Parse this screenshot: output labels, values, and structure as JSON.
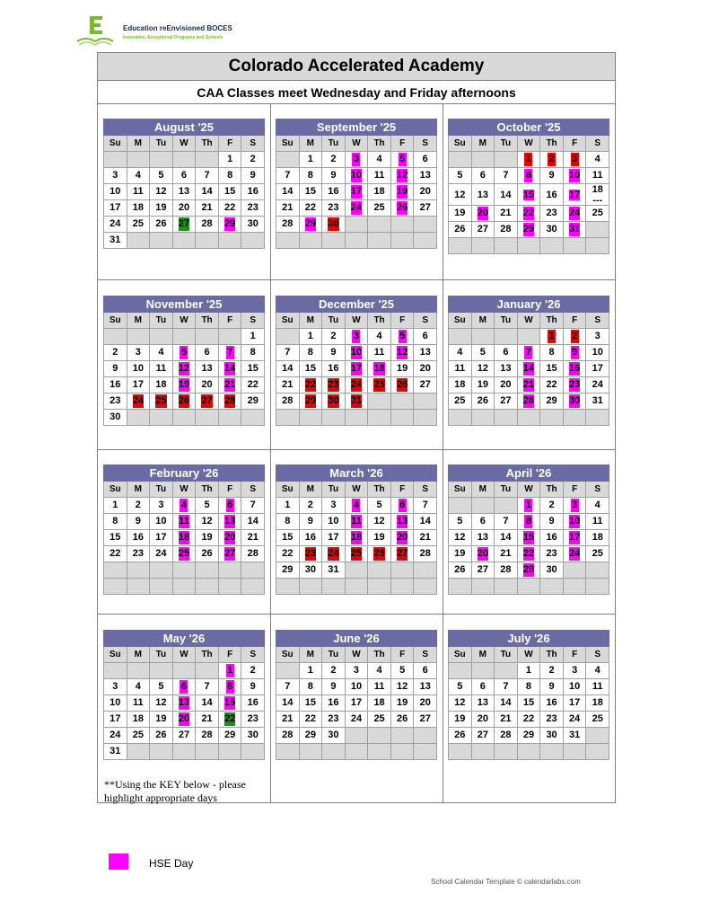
{
  "logo": {
    "name": "Education reEnvisioned BOCES",
    "tagline": "Innovative, Exceptional Programs and Schools"
  },
  "title": "Colorado Accelerated Academy",
  "subtitle": "CAA Classes meet Wednesday and Friday afternoons",
  "dow": [
    "Su",
    "M",
    "Tu",
    "W",
    "Th",
    "F",
    "S"
  ],
  "colors": {
    "m": "#ff00ff",
    "r": "#e60000",
    "g": "#1e8f1e",
    "header": "#6b6ba3"
  },
  "months": [
    {
      "name": "August '25",
      "rows": [
        [
          null,
          null,
          null,
          null,
          null,
          "1",
          "2"
        ],
        [
          "3",
          "4",
          "5",
          "6",
          "7",
          "8",
          "9"
        ],
        [
          "10",
          "11",
          "12",
          "13",
          "14",
          "15",
          "16"
        ],
        [
          "17",
          "18",
          "19",
          "20",
          "21",
          "22",
          "23"
        ],
        [
          "24",
          "25",
          "26",
          {
            "d": "27",
            "c": "g"
          },
          "28",
          {
            "d": "29",
            "c": "m"
          },
          "30"
        ],
        [
          "31",
          null,
          null,
          null,
          null,
          null,
          null
        ]
      ]
    },
    {
      "name": "September '25",
      "rows": [
        [
          null,
          "1",
          "2",
          {
            "d": "3",
            "c": "m"
          },
          "4",
          {
            "d": "5",
            "c": "m"
          },
          "6"
        ],
        [
          "7",
          "8",
          "9",
          {
            "d": "10",
            "c": "m"
          },
          "11",
          {
            "d": "12",
            "c": "m"
          },
          "13"
        ],
        [
          "14",
          "15",
          "16",
          {
            "d": "17",
            "c": "m"
          },
          "18",
          {
            "d": "19",
            "c": "m"
          },
          "20"
        ],
        [
          "21",
          "22",
          "23",
          {
            "d": "24",
            "c": "m"
          },
          "25",
          {
            "d": "26",
            "c": "m"
          },
          "27"
        ],
        [
          "28",
          {
            "d": "29",
            "c": "m"
          },
          {
            "d": "30",
            "c": "r"
          },
          null,
          null,
          null,
          null
        ],
        [
          null,
          null,
          null,
          null,
          null,
          null,
          null
        ]
      ]
    },
    {
      "name": "October '25",
      "rows": [
        [
          null,
          null,
          null,
          {
            "d": "1",
            "c": "r"
          },
          {
            "d": "2",
            "c": "r"
          },
          {
            "d": "3",
            "c": "r"
          },
          "4"
        ],
        [
          "5",
          "6",
          "7",
          {
            "d": "8",
            "c": "m"
          },
          "9",
          {
            "d": "10",
            "c": "m"
          },
          "11"
        ],
        [
          "12",
          "13",
          "14",
          {
            "d": "15",
            "c": "m"
          },
          "16",
          {
            "d": "17",
            "c": "m"
          },
          {
            "d": "18\n---",
            "tall": true
          }
        ],
        [
          "19",
          {
            "d": "20",
            "c": "m"
          },
          "21",
          {
            "d": "22",
            "c": "m"
          },
          "23",
          {
            "d": "24",
            "c": "m"
          },
          "25"
        ],
        [
          "26",
          "27",
          "28",
          {
            "d": "29",
            "c": "m"
          },
          "30",
          {
            "d": "31",
            "c": "m"
          },
          null
        ],
        [
          null,
          null,
          null,
          null,
          null,
          null,
          null
        ]
      ]
    },
    {
      "name": "November '25",
      "rows": [
        [
          null,
          null,
          null,
          null,
          null,
          null,
          "1"
        ],
        [
          "2",
          "3",
          "4",
          {
            "d": "5",
            "c": "m"
          },
          "6",
          {
            "d": "7",
            "c": "m"
          },
          "8"
        ],
        [
          "9",
          "10",
          "11",
          {
            "d": "12",
            "c": "m"
          },
          "13",
          {
            "d": "14",
            "c": "m"
          },
          "15"
        ],
        [
          "16",
          "17",
          "18",
          {
            "d": "19",
            "c": "m"
          },
          "20",
          {
            "d": "21",
            "c": "m"
          },
          "22"
        ],
        [
          "23",
          {
            "d": "24",
            "c": "r"
          },
          {
            "d": "25",
            "c": "r"
          },
          {
            "d": "26",
            "c": "r"
          },
          {
            "d": "27",
            "c": "r"
          },
          {
            "d": "28",
            "c": "r"
          },
          "29"
        ],
        [
          "30",
          null,
          null,
          null,
          null,
          null,
          null
        ]
      ]
    },
    {
      "name": "December '25",
      "rows": [
        [
          null,
          "1",
          "2",
          {
            "d": "3",
            "c": "m"
          },
          "4",
          {
            "d": "5",
            "c": "m"
          },
          "6"
        ],
        [
          "7",
          "8",
          "9",
          {
            "d": "10",
            "c": "m"
          },
          "11",
          {
            "d": "12",
            "c": "m"
          },
          "13"
        ],
        [
          "14",
          "15",
          "16",
          {
            "d": "17",
            "c": "m"
          },
          {
            "d": "18",
            "c": "m"
          },
          "19",
          "20"
        ],
        [
          "21",
          {
            "d": "22",
            "c": "r"
          },
          {
            "d": "23",
            "c": "r"
          },
          {
            "d": "24",
            "c": "r"
          },
          {
            "d": "25",
            "c": "r"
          },
          {
            "d": "26",
            "c": "r"
          },
          "27"
        ],
        [
          "28",
          {
            "d": "29",
            "c": "r"
          },
          {
            "d": "30",
            "c": "r"
          },
          {
            "d": "31",
            "c": "r"
          },
          null,
          null,
          null
        ],
        [
          null,
          null,
          null,
          null,
          null,
          null,
          null
        ]
      ]
    },
    {
      "name": "January '26",
      "rows": [
        [
          null,
          null,
          null,
          null,
          {
            "d": "1",
            "c": "r"
          },
          {
            "d": "2",
            "c": "r"
          },
          "3"
        ],
        [
          "4",
          "5",
          "6",
          {
            "d": "7",
            "c": "m"
          },
          "8",
          {
            "d": "9",
            "c": "m"
          },
          "10"
        ],
        [
          "11",
          "12",
          "13",
          {
            "d": "14",
            "c": "m"
          },
          "15",
          {
            "d": "16",
            "c": "m"
          },
          "17"
        ],
        [
          "18",
          "19",
          "20",
          {
            "d": "21",
            "c": "m"
          },
          "22",
          {
            "d": "23",
            "c": "m"
          },
          "24"
        ],
        [
          "25",
          "26",
          "27",
          {
            "d": "28",
            "c": "m"
          },
          "29",
          {
            "d": "30",
            "c": "m"
          },
          "31"
        ],
        [
          null,
          null,
          null,
          null,
          null,
          null,
          null
        ]
      ]
    },
    {
      "name": "February '26",
      "rows": [
        [
          "1",
          "2",
          "3",
          {
            "d": "4",
            "c": "m"
          },
          "5",
          {
            "d": "6",
            "c": "m"
          },
          "7"
        ],
        [
          "8",
          "9",
          "10",
          {
            "d": "11",
            "c": "m"
          },
          "12",
          {
            "d": "13",
            "c": "m"
          },
          "14"
        ],
        [
          "15",
          "16",
          "17",
          {
            "d": "18",
            "c": "m"
          },
          "19",
          {
            "d": "20",
            "c": "m"
          },
          "21"
        ],
        [
          "22",
          "23",
          "24",
          {
            "d": "25",
            "c": "m"
          },
          "26",
          {
            "d": "27",
            "c": "m"
          },
          "28"
        ],
        [
          null,
          null,
          null,
          null,
          null,
          null,
          null
        ],
        [
          null,
          null,
          null,
          null,
          null,
          null,
          null
        ]
      ]
    },
    {
      "name": "March '26",
      "rows": [
        [
          "1",
          "2",
          "3",
          {
            "d": "4",
            "c": "m"
          },
          "5",
          {
            "d": "6",
            "c": "m"
          },
          "7"
        ],
        [
          "8",
          "9",
          "10",
          {
            "d": "11",
            "c": "m"
          },
          "12",
          {
            "d": "13",
            "c": "m"
          },
          "14"
        ],
        [
          "15",
          "16",
          "17",
          {
            "d": "18",
            "c": "m"
          },
          "19",
          {
            "d": "20",
            "c": "m"
          },
          "21"
        ],
        [
          "22",
          {
            "d": "23",
            "c": "r"
          },
          {
            "d": "24",
            "c": "r"
          },
          {
            "d": "25",
            "c": "r"
          },
          {
            "d": "26",
            "c": "r"
          },
          {
            "d": "27",
            "c": "r"
          },
          "28"
        ],
        [
          "29",
          "30",
          "31",
          null,
          null,
          null,
          null
        ],
        [
          null,
          null,
          null,
          null,
          null,
          null,
          null
        ]
      ]
    },
    {
      "name": "April '26",
      "rows": [
        [
          null,
          null,
          null,
          {
            "d": "1",
            "c": "m"
          },
          "2",
          {
            "d": "3",
            "c": "m"
          },
          "4"
        ],
        [
          "5",
          "6",
          "7",
          {
            "d": "8",
            "c": "m"
          },
          "9",
          {
            "d": "10",
            "c": "m"
          },
          "11"
        ],
        [
          "12",
          "13",
          "14",
          {
            "d": "15",
            "c": "m"
          },
          "16",
          {
            "d": "17",
            "c": "m"
          },
          "18"
        ],
        [
          "19",
          {
            "d": "20",
            "c": "m"
          },
          "21",
          {
            "d": "22",
            "c": "m"
          },
          "23",
          {
            "d": "24",
            "c": "m"
          },
          "25"
        ],
        [
          "26",
          "27",
          "28",
          {
            "d": "29",
            "c": "m"
          },
          "30",
          null,
          null
        ],
        [
          null,
          null,
          null,
          null,
          null,
          null,
          null
        ]
      ]
    },
    {
      "name": "May '26",
      "rows": [
        [
          null,
          null,
          null,
          null,
          null,
          {
            "d": "1",
            "c": "m"
          },
          "2"
        ],
        [
          "3",
          "4",
          "5",
          {
            "d": "6",
            "c": "m"
          },
          "7",
          {
            "d": "8",
            "c": "m"
          },
          "9"
        ],
        [
          "10",
          "11",
          "12",
          {
            "d": "13",
            "c": "m"
          },
          "14",
          {
            "d": "15",
            "c": "m"
          },
          "16"
        ],
        [
          "17",
          "18",
          "19",
          {
            "d": "20",
            "c": "m"
          },
          "21",
          {
            "d": "22",
            "c": "g"
          },
          "23"
        ],
        [
          "24",
          "25",
          "26",
          "27",
          "28",
          "29",
          "30"
        ],
        [
          "31",
          null,
          null,
          null,
          null,
          null,
          null
        ]
      ]
    },
    {
      "name": "June '26",
      "rows": [
        [
          null,
          "1",
          "2",
          "3",
          "4",
          "5",
          "6"
        ],
        [
          "7",
          "8",
          "9",
          "10",
          "11",
          "12",
          "13"
        ],
        [
          "14",
          "15",
          "16",
          "17",
          "18",
          "19",
          "20"
        ],
        [
          "21",
          "22",
          "23",
          "24",
          "25",
          "26",
          "27"
        ],
        [
          "28",
          "29",
          "30",
          null,
          null,
          null,
          null
        ],
        [
          null,
          null,
          null,
          null,
          null,
          null,
          null
        ]
      ]
    },
    {
      "name": "July '26",
      "rows": [
        [
          null,
          null,
          null,
          "1",
          "2",
          "3",
          "4"
        ],
        [
          "5",
          "6",
          "7",
          "8",
          "9",
          "10",
          "11"
        ],
        [
          "12",
          "13",
          "14",
          "15",
          "16",
          "17",
          "18"
        ],
        [
          "19",
          "20",
          "21",
          "22",
          "23",
          "24",
          "25"
        ],
        [
          "26",
          "27",
          "28",
          "29",
          "30",
          "31",
          null
        ],
        [
          null,
          null,
          null,
          null,
          null,
          null,
          null
        ]
      ]
    }
  ],
  "key_note": "**Using the KEY below - please highlight appropriate days",
  "key": [
    {
      "label": "HSE Day",
      "color": "#ff00ff"
    }
  ],
  "credit": "School Calendar Template © calendarlabs.com"
}
